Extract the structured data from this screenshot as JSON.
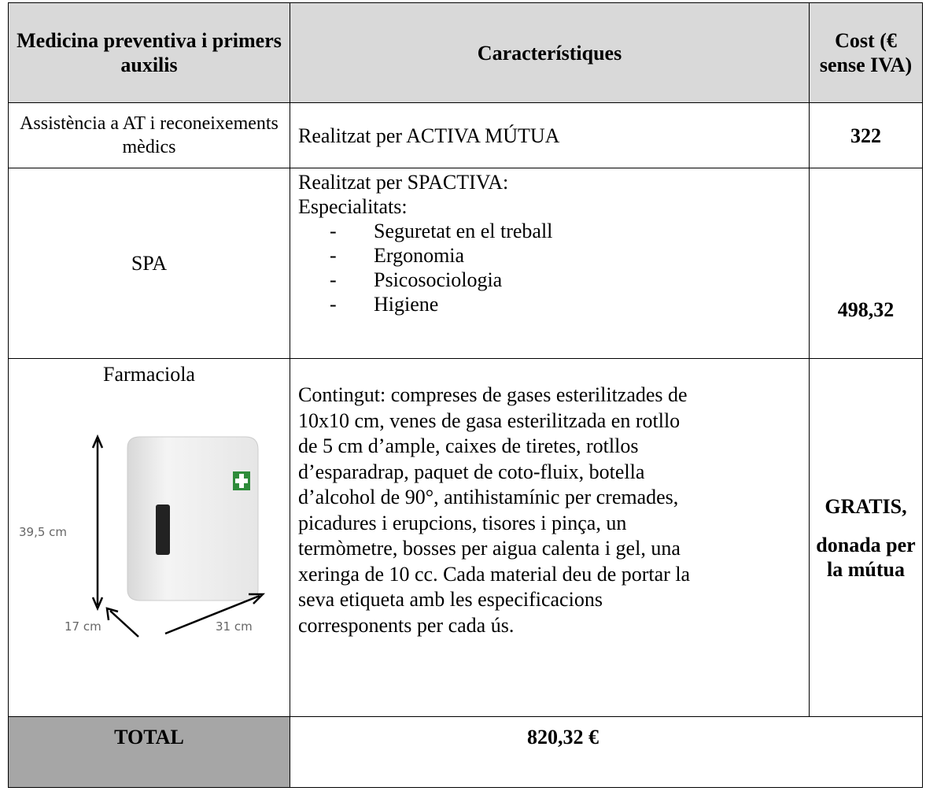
{
  "table": {
    "header": [
      "Medicina preventiva i primers auxilis",
      "Característiques",
      "Cost (€ sense IVA)"
    ],
    "rows": [
      {
        "name": "Assistència a AT i reconeixements mèdics",
        "description": "Realitzat per ACTIVA MÚTUA",
        "cost": "322"
      },
      {
        "name": "SPA",
        "description": "Realitzat per SPACTIVA:",
        "subtitle": "Especialitats:",
        "items": [
          "Seguretat en el treball",
          "Ergonomia",
          "Psicosociologia",
          "Higiene"
        ],
        "cost": "498,32"
      },
      {
        "name": "Farmaciola",
        "image_labels": [
          "39,5 cm",
          "17 cm",
          "31 cm"
        ],
        "description_lines": [
          "Contingut: compreses de gases esterilitzades de",
          "10x10 cm, venes de gasa esterilitzada en rotllo",
          "de 5 cm d’ample, caixes de tiretes, rotllos",
          "d’esparadrap, paquet de coto-fluix, botella",
          "d’alcohol de 90°, antihistamínic per cremades,",
          "picadures i erupcions, tisores i pinça, un",
          "termòmetre, bosses per aigua calenta i gel, una",
          "xeringa de 10 cc. Cada material deu de portar la",
          "seva etiqueta amb les especificacions",
          "corresponents per cada ús."
        ],
        "cost": [
          "GRATIS,",
          "donada per la mútua"
        ]
      }
    ],
    "total": {
      "label": "TOTAL",
      "value": "820,32 €"
    }
  }
}
